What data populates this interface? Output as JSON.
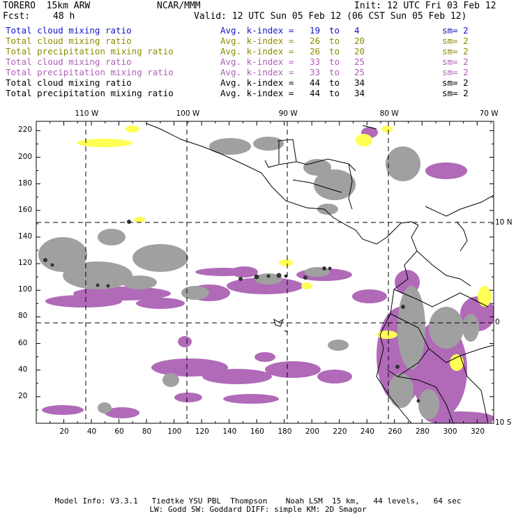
{
  "header": {
    "model": "TORERO  15km ARW",
    "center": "NCAR/MMM",
    "init": "Init: 12 UTC Fri 03 Feb 12",
    "fcst_label": "Fcst:",
    "fcst_value": "48 h",
    "valid": "Valid: 12 UTC Sun 05 Feb 12 (06 CST Sun 05 Feb 12)"
  },
  "colors": {
    "blue": "#1515c8",
    "olive": "#8c8c00",
    "purple": "#b060b8",
    "black": "#000000",
    "magenta_fill": "#b06ab8",
    "yellow_fill": "#ffff55",
    "gray_fill": "#9a9a9a"
  },
  "legend": [
    {
      "field": "Total cloud mixing ratio",
      "stat": "Avg. k-index = ",
      "hi": "19",
      "to": "to",
      "lo": "4",
      "sm": "sm= 2",
      "color": "#1515c8"
    },
    {
      "field": "Total cloud mixing ratio",
      "stat": "Avg. k-index = ",
      "hi": "26",
      "to": "to",
      "lo": "20",
      "sm": "sm= 2",
      "color": "#8c8c00"
    },
    {
      "field": "Total precipitation mixing ratio",
      "stat": "Avg. k-index = ",
      "hi": "26",
      "to": "to",
      "lo": "20",
      "sm": "sm= 2",
      "color": "#8c8c00"
    },
    {
      "field": "Total cloud mixing ratio",
      "stat": "Avg. k-index = ",
      "hi": "33",
      "to": "to",
      "lo": "25",
      "sm": "sm= 2",
      "color": "#b060b8"
    },
    {
      "field": "Total precipitation mixing ratio",
      "stat": "Avg. k-index = ",
      "hi": "33",
      "to": "to",
      "lo": "25",
      "sm": "sm= 2",
      "color": "#b060b8"
    },
    {
      "field": "Total cloud mixing ratio",
      "stat": "Avg. k-index = ",
      "hi": "44",
      "to": "to",
      "lo": "34",
      "sm": "sm= 2",
      "color": "#000000"
    },
    {
      "field": "Total precipitation mixing ratio",
      "stat": "Avg. k-index = ",
      "hi": "44",
      "to": "to",
      "lo": "34",
      "sm": "sm= 2",
      "color": "#000000"
    }
  ],
  "map": {
    "top_lon_labels": [
      "110 W",
      "100 W",
      "90 W",
      "80 W",
      "70 W"
    ],
    "right_lat_labels": [
      "10 N",
      "0",
      "10 S"
    ],
    "left_grid_labels": [
      "220",
      "200",
      "180",
      "160",
      "140",
      "120",
      "100",
      "80",
      "60",
      "40",
      "20"
    ],
    "bottom_grid_labels": [
      "20",
      "40",
      "60",
      "80",
      "100",
      "120",
      "140",
      "160",
      "180",
      "200",
      "220",
      "240",
      "260",
      "280",
      "300",
      "320"
    ],
    "grid_min": 0,
    "grid_max_x": 332,
    "grid_max_y": 227
  },
  "footer": {
    "line1": "Model Info: V3.3.1   Tiedtke YSU PBL  Thompson    Noah LSM  15 km,   44 levels,   64 sec",
    "line2": "LW: Godd SW: Goddard DIFF: simple KM: 2D Smagor"
  }
}
